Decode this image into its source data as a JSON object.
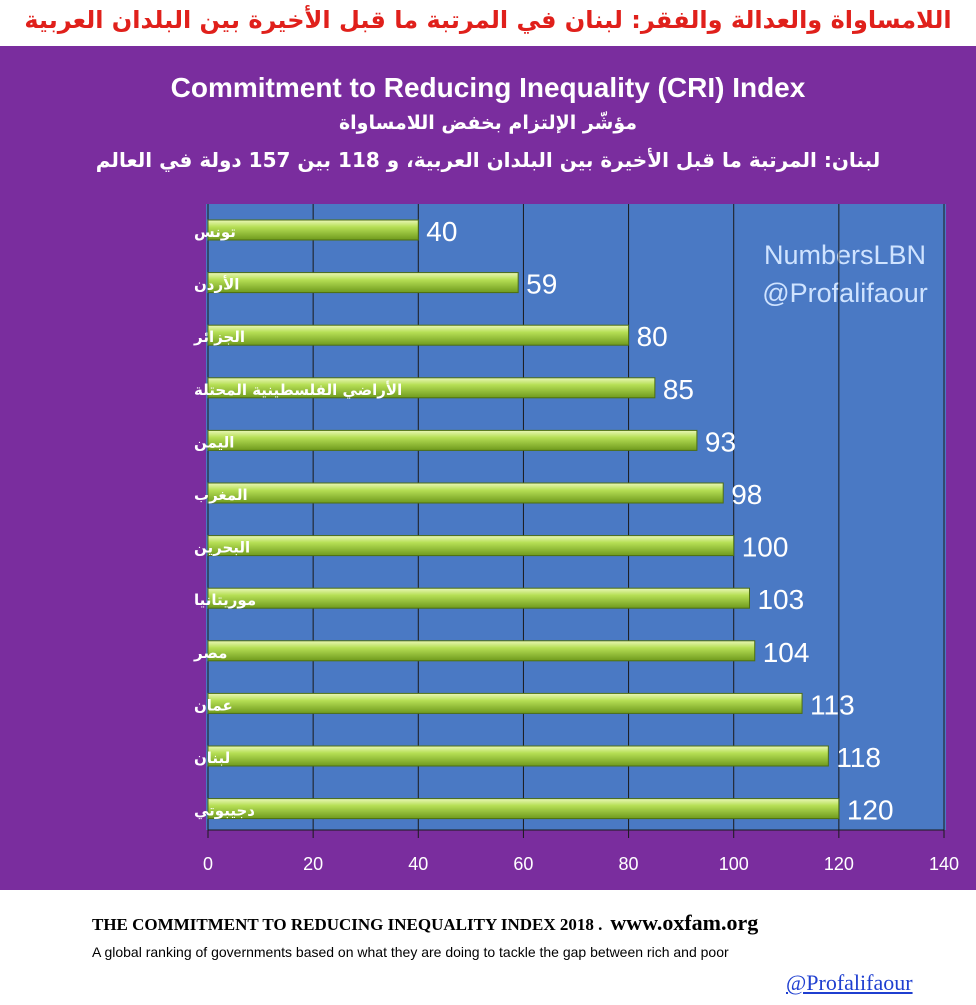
{
  "header": {
    "title_ar": "اللامساواة والعدالة والفقر: لبنان في المرتبة ما قبل الأخيرة بين البلدان العربية"
  },
  "colors": {
    "panel_bg": "#7a2d9e",
    "plot_bg": "#4a79c4",
    "bar_fill": "#9ccc3a",
    "title_red": "#e0201b",
    "link_blue": "#1f3fd0"
  },
  "watermark": {
    "line1": "NumbersLBN",
    "line2": "@Profalifaour"
  },
  "footer": {
    "line1": "THE COMMITMENT TO REDUCING INEQUALITY INDEX 2018 .",
    "url": "www.oxfam.org",
    "line2": "A global ranking of governments based on what they are doing to tackle the gap between rich and poor",
    "handle": "@Profalifaour"
  },
  "chart_data": {
    "type": "bar",
    "orientation": "horizontal",
    "title": "Commitment to Reducing Inequality (CRI) Index",
    "subtitle_ar": "مؤشّر الإلتزام بخفض اللامساواة",
    "subtitle2_ar": "لبنان: المرتبة ما قبل الأخيرة بين البلدان العربية، و 118 بين 157 دولة في العالم",
    "categories": [
      "تونس",
      "الأردن",
      "الجزائر",
      "الأراضي الفلسطينية المحتلة",
      "اليمن",
      "المغرب",
      "البحرين",
      "موريتانيا",
      "مصر",
      "عمان",
      "لبنان",
      "دجيبوتي"
    ],
    "values": [
      40,
      59,
      80,
      85,
      93,
      98,
      100,
      103,
      104,
      113,
      118,
      120
    ],
    "xlim": [
      0,
      140
    ],
    "xticks": [
      0,
      20,
      40,
      60,
      80,
      100,
      120,
      140
    ],
    "grid": true,
    "legend": "none"
  }
}
